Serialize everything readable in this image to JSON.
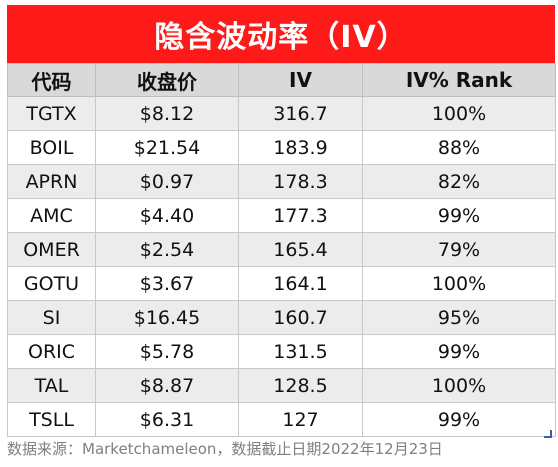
{
  "banner": {
    "title": "隐含波动率（IV）"
  },
  "table": {
    "headers": [
      "代码",
      "收盘价",
      "IV",
      "IV% Rank"
    ],
    "rows": [
      [
        "TGTX",
        "$8.12",
        "316.7",
        "100%"
      ],
      [
        "BOIL",
        "$21.54",
        "183.9",
        "88%"
      ],
      [
        "APRN",
        "$0.97",
        "178.3",
        "82%"
      ],
      [
        "AMC",
        "$4.40",
        "177.3",
        "99%"
      ],
      [
        "OMER",
        "$2.54",
        "165.4",
        "79%"
      ],
      [
        "GOTU",
        "$3.67",
        "164.1",
        "100%"
      ],
      [
        "SI",
        "$16.45",
        "160.7",
        "95%"
      ],
      [
        "ORIC",
        "$5.78",
        "131.5",
        "99%"
      ],
      [
        "TAL",
        "$8.87",
        "128.5",
        "100%"
      ],
      [
        "TSLL",
        "$6.31",
        "127",
        "99%"
      ]
    ]
  },
  "footer": {
    "source": "数据来源：Marketchameleon，数据截止日期2022年12月23日"
  },
  "colors": {
    "banner": "#ff1a1a",
    "header_bg": "#d9d9d9",
    "stripe": "#ececec"
  }
}
